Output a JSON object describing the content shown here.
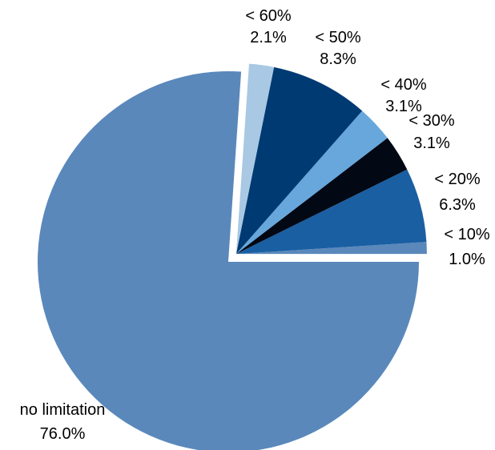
{
  "chart_data": {
    "type": "pie",
    "title": "",
    "slices": [
      {
        "category": "< 10%",
        "value_label": "1.0%",
        "value": 1.0,
        "color": "#5a88bb",
        "exploded": true
      },
      {
        "category": "< 20%",
        "value_label": "6.3%",
        "value": 6.3,
        "color": "#1a5fa2",
        "exploded": true
      },
      {
        "category": "< 30%",
        "value_label": "3.1%",
        "value": 3.1,
        "color": "#020814",
        "exploded": true
      },
      {
        "category": "< 40%",
        "value_label": "3.1%",
        "value": 3.1,
        "color": "#67a7dc",
        "exploded": true
      },
      {
        "category": "< 50%",
        "value_label": "8.3%",
        "value": 8.3,
        "color": "#003a73",
        "exploded": true
      },
      {
        "category": "< 60%",
        "value_label": "2.1%",
        "value": 2.1,
        "color": "#a8c8e3",
        "exploded": true
      },
      {
        "category": "no limitation",
        "value_label": "76.0%",
        "value": 76.0,
        "color": "#5a88bb",
        "exploded": false
      }
    ]
  }
}
